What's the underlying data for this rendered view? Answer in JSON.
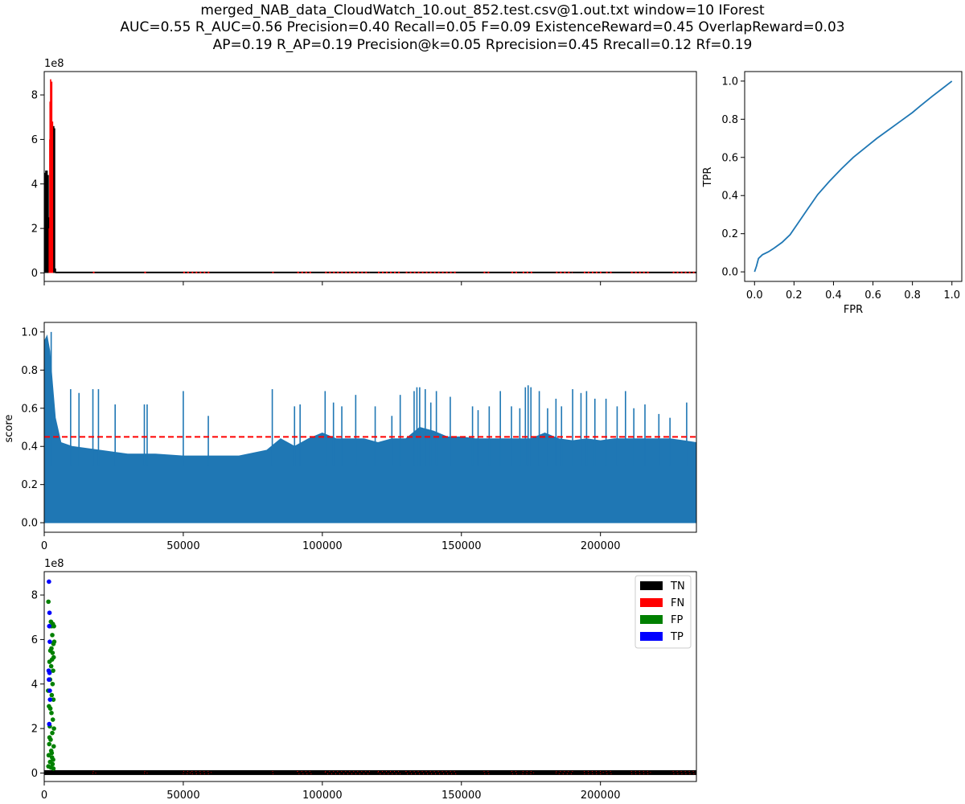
{
  "title": {
    "lines": [
      "merged_NAB_data_CloudWatch_10.out_852.test.csv@1.out.txt    window=10   IForest",
      "AUC=0.55     R_AUC=0.56     Precision=0.40     Recall=0.05     F=0.09     ExistenceReward=0.45   OverlapReward=0.03",
      "AP=0.19     R_AP=0.19     Precision@k=0.05     Rprecision=0.45     Rrecall=0.12     Rf=0.19"
    ]
  },
  "colors": {
    "series_blue": "#1f77b4",
    "threshold_red": "#ff0000",
    "tn": "#000000",
    "fn": "#ff0000",
    "fp": "#008000",
    "tp": "#0000ff"
  },
  "chart_data": [
    {
      "id": "timeseries",
      "type": "line",
      "offset_label": "1e8",
      "xlim": [
        0,
        234500
      ],
      "ylim": [
        -0.38,
        9.05
      ],
      "yticks": [
        0,
        2,
        4,
        6,
        8
      ],
      "ytick_labels": [
        "0",
        "2",
        "4",
        "6",
        "8"
      ],
      "xticks": [
        0,
        50000,
        100000,
        150000,
        200000
      ],
      "xtick_labels": [
        "",
        "",
        "",
        "",
        ""
      ],
      "baseline_value": 0.02,
      "normal_series": {
        "name": "",
        "x": [
          0,
          200,
          500,
          800,
          1200,
          1500,
          1800,
          2000,
          3000,
          3200,
          3500,
          3800,
          4000
        ],
        "y": [
          0.3,
          4.5,
          3.8,
          4.6,
          4.4,
          2.5,
          0.1,
          0.2,
          0.4,
          6.6,
          6.5,
          0.2,
          0.02
        ]
      },
      "anomaly_series": {
        "name": "",
        "x": [
          1800,
          2000,
          2100,
          2200,
          2300,
          2400,
          2500,
          2600,
          2700,
          2800,
          2900,
          3000
        ],
        "y": [
          2.0,
          6.0,
          7.7,
          4.8,
          8.7,
          3.2,
          6.9,
          5.5,
          8.6,
          6.8,
          4.0,
          6.8
        ]
      },
      "anomaly_ranges": [
        [
          17500,
          18500
        ],
        [
          36000,
          37000
        ],
        [
          50000,
          52500
        ],
        [
          53000,
          60000
        ],
        [
          82000,
          82500
        ],
        [
          91000,
          96000
        ],
        [
          101000,
          117000
        ],
        [
          120000,
          128000
        ],
        [
          130000,
          148000
        ],
        [
          158000,
          160000
        ],
        [
          168000,
          170000
        ],
        [
          172000,
          176000
        ],
        [
          184000,
          190000
        ],
        [
          194000,
          201000
        ],
        [
          202000,
          204000
        ],
        [
          211000,
          218000
        ],
        [
          226000,
          234500
        ]
      ]
    },
    {
      "id": "roc",
      "type": "line",
      "xlabel": "FPR",
      "ylabel": "TPR",
      "xlim": [
        -0.05,
        1.05
      ],
      "ylim": [
        -0.05,
        1.05
      ],
      "xticks": [
        0,
        0.2,
        0.4,
        0.6,
        0.8,
        1.0
      ],
      "xtick_labels": [
        "0.0",
        "0.2",
        "0.4",
        "0.6",
        "0.8",
        "1.0"
      ],
      "yticks": [
        0,
        0.2,
        0.4,
        0.6,
        0.8,
        1.0
      ],
      "ytick_labels": [
        "0.0",
        "0.2",
        "0.4",
        "0.6",
        "0.8",
        "1.0"
      ],
      "series": [
        {
          "name": "",
          "x": [
            0.0,
            0.01,
            0.02,
            0.04,
            0.07,
            0.1,
            0.14,
            0.18,
            0.22,
            0.27,
            0.32,
            0.38,
            0.44,
            0.5,
            0.56,
            0.62,
            0.68,
            0.74,
            0.8,
            0.84,
            0.9,
            0.95,
            1.0
          ],
          "y": [
            0.0,
            0.03,
            0.07,
            0.09,
            0.105,
            0.125,
            0.155,
            0.195,
            0.255,
            0.33,
            0.405,
            0.475,
            0.54,
            0.6,
            0.65,
            0.7,
            0.745,
            0.79,
            0.835,
            0.87,
            0.92,
            0.96,
            1.0
          ]
        }
      ]
    },
    {
      "id": "score",
      "type": "area",
      "ylabel": "score",
      "xlim": [
        0,
        234500
      ],
      "ylim": [
        -0.05,
        1.05
      ],
      "yticks": [
        0,
        0.2,
        0.4,
        0.6,
        0.8,
        1.0
      ],
      "ytick_labels": [
        "0.0",
        "0.2",
        "0.4",
        "0.6",
        "0.8",
        "1.0"
      ],
      "xticks": [
        0,
        50000,
        100000,
        150000,
        200000
      ],
      "xtick_labels": [
        "0",
        "50000",
        "100000",
        "150000",
        "200000"
      ],
      "threshold": 0.45,
      "envelope": {
        "x": [
          0,
          1000,
          2000,
          3000,
          4000,
          6000,
          10000,
          20000,
          30000,
          40000,
          50000,
          60000,
          70000,
          80000,
          85000,
          90000,
          95000,
          100000,
          105000,
          110000,
          115000,
          120000,
          125000,
          130000,
          135000,
          140000,
          145000,
          150000,
          155000,
          160000,
          165000,
          170000,
          175000,
          180000,
          185000,
          190000,
          195000,
          200000,
          205000,
          210000,
          215000,
          220000,
          225000,
          230000,
          234500
        ],
        "y": [
          0.95,
          0.98,
          0.9,
          0.72,
          0.55,
          0.42,
          0.4,
          0.38,
          0.36,
          0.36,
          0.35,
          0.35,
          0.35,
          0.38,
          0.44,
          0.4,
          0.44,
          0.47,
          0.44,
          0.44,
          0.44,
          0.42,
          0.44,
          0.44,
          0.5,
          0.48,
          0.45,
          0.45,
          0.44,
          0.44,
          0.44,
          0.44,
          0.44,
          0.47,
          0.44,
          0.43,
          0.44,
          0.43,
          0.44,
          0.44,
          0.44,
          0.44,
          0.44,
          0.43,
          0.42
        ]
      },
      "spikes": {
        "x": [
          2500,
          9500,
          12500,
          17500,
          19500,
          25500,
          36000,
          37000,
          50000,
          59000,
          82000,
          90000,
          92000,
          101000,
          104000,
          107000,
          112000,
          119000,
          125000,
          128000,
          133000,
          134000,
          135000,
          137000,
          139000,
          141000,
          146000,
          154000,
          156000,
          160000,
          164000,
          168000,
          171000,
          173000,
          174000,
          175000,
          178000,
          181000,
          184000,
          186000,
          190000,
          193000,
          195000,
          198000,
          202000,
          206000,
          209000,
          212000,
          216000,
          221000,
          225000,
          231000
        ],
        "y": [
          1.0,
          0.7,
          0.68,
          0.7,
          0.7,
          0.62,
          0.62,
          0.62,
          0.69,
          0.56,
          0.7,
          0.61,
          0.62,
          0.69,
          0.63,
          0.61,
          0.67,
          0.61,
          0.56,
          0.67,
          0.69,
          0.71,
          0.71,
          0.7,
          0.63,
          0.69,
          0.66,
          0.61,
          0.59,
          0.61,
          0.69,
          0.61,
          0.6,
          0.71,
          0.72,
          0.71,
          0.69,
          0.6,
          0.65,
          0.61,
          0.7,
          0.68,
          0.69,
          0.65,
          0.65,
          0.61,
          0.69,
          0.6,
          0.62,
          0.57,
          0.55,
          0.63
        ]
      }
    },
    {
      "id": "classification",
      "type": "scatter",
      "offset_label": "1e8",
      "xlim": [
        0,
        234500
      ],
      "ylim": [
        -0.38,
        9.05
      ],
      "yticks": [
        0,
        2,
        4,
        6,
        8
      ],
      "ytick_labels": [
        "0",
        "2",
        "4",
        "6",
        "8"
      ],
      "xticks": [
        0,
        50000,
        100000,
        150000,
        200000
      ],
      "xtick_labels": [
        "0",
        "50000",
        "100000",
        "150000",
        "200000"
      ],
      "legend": {
        "position": "upper right",
        "entries": [
          {
            "label": "TN",
            "color": "#000000"
          },
          {
            "label": "FN",
            "color": "#ff0000"
          },
          {
            "label": "FP",
            "color": "#008000"
          },
          {
            "label": "TP",
            "color": "#0000ff"
          }
        ]
      },
      "tp_points": {
        "x": [
          1700,
          1900,
          1800,
          2000,
          1600,
          1900,
          1700,
          2000,
          2100,
          1800
        ],
        "y": [
          8.6,
          7.2,
          6.6,
          5.9,
          4.6,
          4.5,
          4.2,
          3.7,
          3.3,
          2.2
        ]
      },
      "fp_points": {
        "x": [
          1500,
          2000,
          2400,
          2700,
          3100,
          3500,
          2900,
          3300,
          2600,
          3600,
          2200,
          3000,
          2800,
          3400,
          1900,
          2500,
          3200,
          2100,
          3000,
          1400,
          2700,
          3300,
          1700,
          2200,
          2600,
          3100,
          2000,
          3500,
          2900,
          2300,
          1800,
          3400,
          2500,
          1600,
          2800,
          3200,
          2100,
          3000,
          1500,
          2400,
          3300,
          2700,
          1900
        ],
        "y": [
          7.7,
          6.6,
          6.8,
          6.6,
          6.7,
          6.6,
          6.2,
          5.8,
          5.6,
          5.9,
          5.5,
          5.4,
          5.1,
          5.2,
          5.0,
          4.8,
          4.6,
          4.2,
          4.0,
          3.7,
          3.5,
          3.3,
          3.0,
          2.9,
          2.7,
          2.4,
          2.1,
          2.0,
          1.8,
          1.5,
          1.3,
          1.2,
          1.0,
          0.8,
          0.7,
          0.6,
          0.5,
          0.4,
          0.3,
          0.25,
          0.2,
          0.9,
          1.6
        ]
      },
      "fn_ranges": [
        [
          17500,
          18500
        ],
        [
          36000,
          37000
        ],
        [
          50000,
          52500
        ],
        [
          53000,
          60000
        ],
        [
          82000,
          82500
        ],
        [
          91000,
          96000
        ],
        [
          101000,
          117000
        ],
        [
          120000,
          128000
        ],
        [
          130000,
          148000
        ],
        [
          158000,
          160000
        ],
        [
          168000,
          170000
        ],
        [
          172000,
          176000
        ],
        [
          184000,
          190000
        ],
        [
          194000,
          201000
        ],
        [
          202000,
          204000
        ],
        [
          211000,
          218000
        ],
        [
          226000,
          234500
        ]
      ],
      "tn_value": 0.02
    }
  ]
}
